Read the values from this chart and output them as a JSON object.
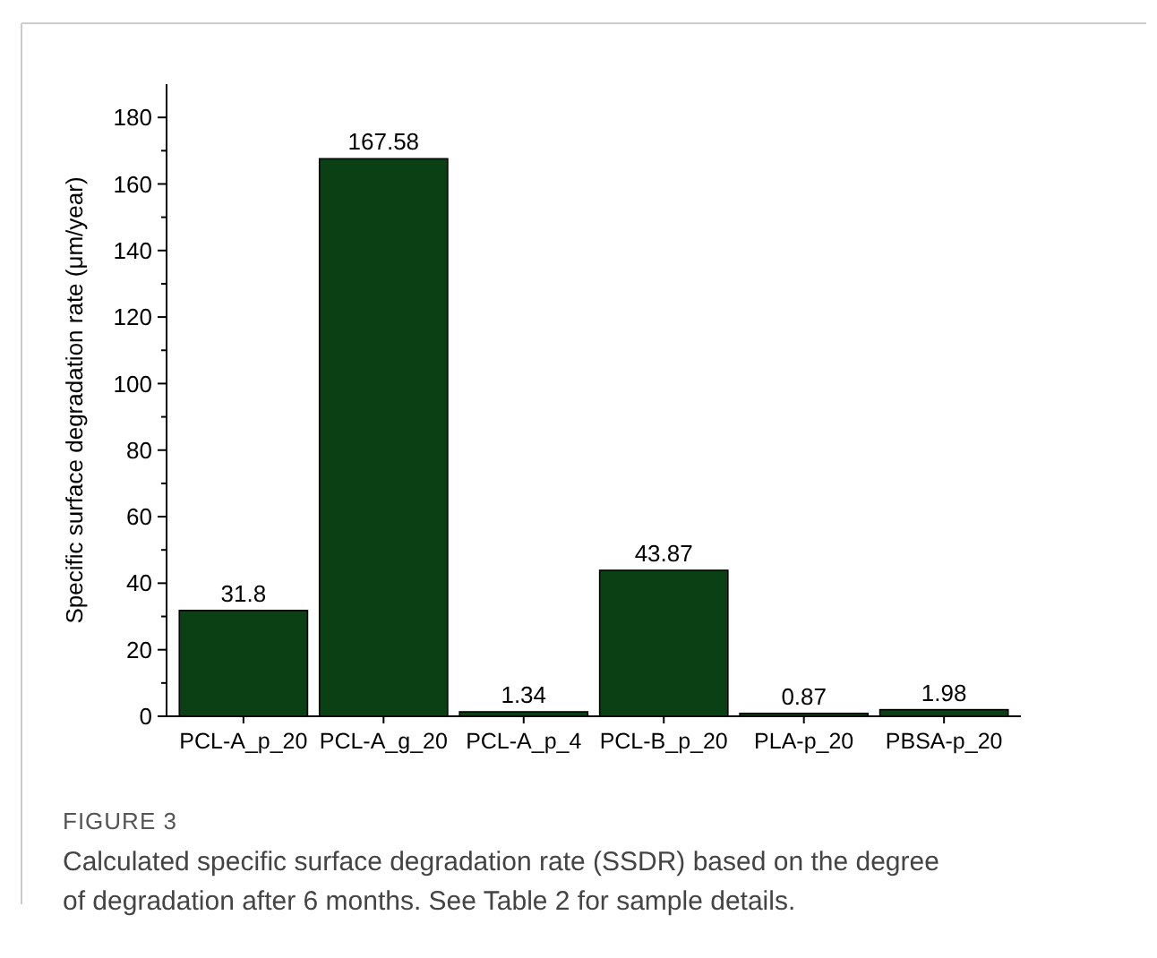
{
  "chart_data": {
    "type": "bar",
    "ylabel": "Specific surface degradation rate (μm/year)",
    "categories": [
      "PCL-A_p_20",
      "PCL-A_g_20",
      "PCL-A_p_4",
      "PCL-B_p_20",
      "PLA-p_20",
      "PBSA-p_20"
    ],
    "values": [
      31.8,
      167.58,
      1.34,
      43.87,
      0.87,
      1.98
    ],
    "color": "#0b4015",
    "ylim": [
      0,
      190
    ],
    "yticks": [
      0,
      20,
      40,
      60,
      80,
      100,
      120,
      140,
      160,
      180
    ],
    "data_labels": true,
    "grid": false,
    "annotations": [
      "FIGURE 3",
      "Calculated specific surface degradation rate (SSDR) based on the degree of degradation after 6 months. See Table 2 for sample details."
    ]
  }
}
